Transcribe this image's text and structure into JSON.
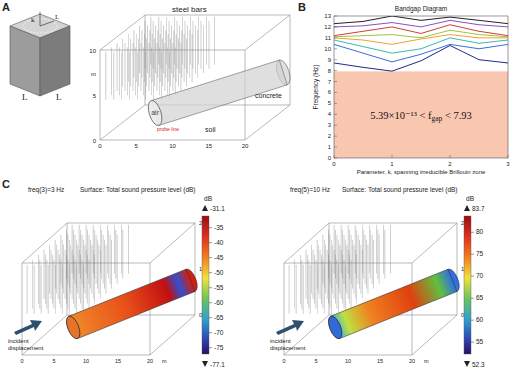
{
  "panel_labels": [
    "A",
    "B",
    "C"
  ],
  "panel_a": {
    "cell_edge_labels": [
      "L",
      "L"
    ],
    "cell_inner_labels": [
      "k",
      "L"
    ],
    "scene_labels": {
      "steel": "steel bars",
      "air": "air",
      "concrete": "concrete",
      "soil": "soil",
      "probe": "probe line"
    },
    "z_ticks": [
      "10",
      "5",
      "0"
    ],
    "x_ticks": [
      "0",
      "5",
      "10",
      "15",
      "20"
    ],
    "unit": "m"
  },
  "chart_data": {
    "type": "line",
    "title": "Bandgap Diagram",
    "x_label": "Parameter, k, spanning irreducible Brillouin zone",
    "y_label": "Frequency (Hz)",
    "x": [
      0,
      0.5,
      1,
      1.5,
      2,
      2.5,
      3
    ],
    "series": [
      {
        "color": "#1f2a8a",
        "values": [
          8.7,
          8.3,
          7.95,
          8.9,
          10.3,
          9.0,
          8.7
        ]
      },
      {
        "color": "#3a6fd8",
        "values": [
          10.4,
          9.6,
          8.8,
          9.5,
          10.4,
          10.0,
          10.4
        ]
      },
      {
        "color": "#3fb7b0",
        "values": [
          10.8,
          10.2,
          9.6,
          10.0,
          11.0,
          10.5,
          10.8
        ]
      },
      {
        "color": "#f0a030",
        "values": [
          11.0,
          10.8,
          10.4,
          10.9,
          11.3,
          11.0,
          11.0
        ]
      },
      {
        "color": "#9cc63a",
        "values": [
          11.1,
          11.2,
          11.3,
          11.0,
          11.7,
          11.3,
          11.1
        ]
      },
      {
        "color": "#d83a3a",
        "values": [
          11.2,
          11.6,
          12.0,
          11.4,
          12.2,
          11.6,
          11.2
        ]
      },
      {
        "color": "#8a4fc0",
        "values": [
          12.0,
          12.1,
          12.4,
          12.0,
          12.6,
          12.2,
          12.0
        ]
      },
      {
        "color": "#222222",
        "values": [
          12.3,
          12.5,
          13.0,
          12.6,
          12.9,
          12.6,
          12.3
        ]
      }
    ],
    "xlim": [
      0,
      3
    ],
    "ylim": [
      0,
      13
    ],
    "xticks": [
      0,
      1,
      2,
      3
    ],
    "yticks": [
      0,
      1,
      2,
      3,
      4,
      5,
      6,
      7,
      8,
      9,
      10,
      11,
      12,
      13
    ],
    "grid": false,
    "gap": {
      "values": [
        5.39e-13,
        7.93
      ],
      "color": "#f9c7b0"
    },
    "annotation": [
      "5.39×10⁻¹³ < f",
      "gap",
      " < 7.93"
    ]
  },
  "panel_c": {
    "plots": [
      {
        "freq": "freq(3)=3 Hz",
        "surface": "Surface: Total sound pressure level (dB)",
        "unit": "dB",
        "max": -31.1,
        "min": -77.1,
        "ticks": [
          -35,
          -40,
          -45,
          -50,
          -55,
          -60,
          -65,
          -70,
          -75
        ],
        "incident": "incident displacement",
        "x_ticks": [
          "0",
          "5",
          "10",
          "15",
          "20"
        ],
        "z_ticks": [
          "0",
          "10",
          "20"
        ],
        "axis_unit": "m"
      },
      {
        "freq": "freq(5)=10 Hz",
        "surface": "Surface: Total sound pressure level (dB)",
        "unit": "dB",
        "max": 83.7,
        "min": 52.3,
        "ticks": [
          80,
          75,
          70,
          65,
          60,
          55
        ],
        "incident": "incident displacement",
        "x_ticks": [
          "0",
          "5",
          "10",
          "15",
          "20"
        ],
        "z_ticks": [
          "0",
          "10",
          "20"
        ],
        "axis_unit": "m"
      }
    ]
  }
}
